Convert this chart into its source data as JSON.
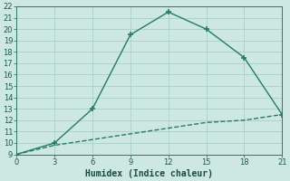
{
  "xlabel": "Humidex (Indice chaleur)",
  "bg_color": "#cce8e0",
  "grid_color": "#aad0c8",
  "line_color": "#267a6a",
  "xlim": [
    0,
    21
  ],
  "ylim": [
    9,
    22
  ],
  "xticks": [
    0,
    3,
    6,
    9,
    12,
    15,
    18,
    21
  ],
  "yticks": [
    9,
    10,
    11,
    12,
    13,
    14,
    15,
    16,
    17,
    18,
    19,
    20,
    21,
    22
  ],
  "curve1_x": [
    0,
    3,
    6,
    9,
    12,
    15,
    18,
    21
  ],
  "curve1_y": [
    9,
    10,
    13,
    19.5,
    21.5,
    20,
    17.5,
    12.5
  ],
  "curve2_x": [
    0,
    3,
    6,
    9,
    12,
    15,
    18,
    21
  ],
  "curve2_y": [
    9,
    9.8,
    10.3,
    10.8,
    11.3,
    11.8,
    12.0,
    12.5
  ],
  "marker_size": 4,
  "line_width": 1.0,
  "tick_labelsize": 6,
  "xlabel_fontsize": 7
}
